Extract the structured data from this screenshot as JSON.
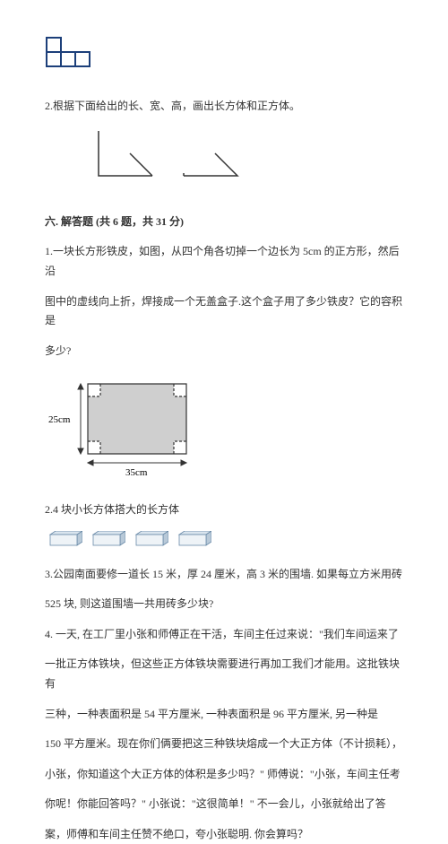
{
  "figure_l": {
    "stroke": "#1c3f7a",
    "stroke_width": 2,
    "cell": 16
  },
  "q2_draw": "2.根据下面给出的长、宽、高，画出长方体和正方体。",
  "brackets": {
    "stroke": "#333333",
    "stroke_width": 1.5
  },
  "section6": {
    "header": "六. 解答题 (共 6 题，共 31 分)",
    "q1_l1": "1.一块长方形铁皮，如图，从四个角各切掉一个边长为 5cm 的正方形，然后沿",
    "q1_l2": "图中的虚线向上折，焊接成一个无盖盒子.这个盒子用了多少铁皮？它的容积是",
    "q1_l3": "多少?",
    "box_diagram": {
      "width_label": "35cm",
      "height_label": "25cm",
      "fill": "#cfcfcf",
      "stroke": "#333333",
      "corner_size": 14,
      "w": 110,
      "h": 78
    },
    "q2": "2.4 块小长方体搭大的长方体",
    "cuboid": {
      "count": 4,
      "top_fill": "#d9e4ee",
      "side_fill": "#b8c9d8",
      "front_fill": "#eef3f7",
      "stroke": "#6a8aa8"
    },
    "q3_l1": "3.公园南面要修一道长 15 米，厚 24 厘米，高 3 米的围墙. 如果每立方米用砖",
    "q3_l2": "525 块, 则这道围墙一共用砖多少块?",
    "q4_l1": "4. 一天, 在工厂里小张和师傅正在干活，车间主任过来说：\"我们车间运来了",
    "q4_l2": "一批正方体铁块，但这些正方体铁块需要进行再加工我们才能用。这批铁块有",
    "q4_l3": "三种，一种表面积是 54 平方厘米, 一种表面积是 96 平方厘米, 另一种是",
    "q4_l4": "150 平方厘米。现在你们俩要把这三种铁块熔成一个大正方体（不计损耗），",
    "q4_l5": "小张，你知道这个大正方体的体积是多少吗？\" 师傅说：\"小张，车间主任考",
    "q4_l6": "你呢！你能回答吗？\" 小张说：\"这很简单！\" 不一会儿，小张就给出了答",
    "q4_l7": "案，师傅和车间主任赞不绝口，夸小张聪明. 你会算吗？"
  }
}
